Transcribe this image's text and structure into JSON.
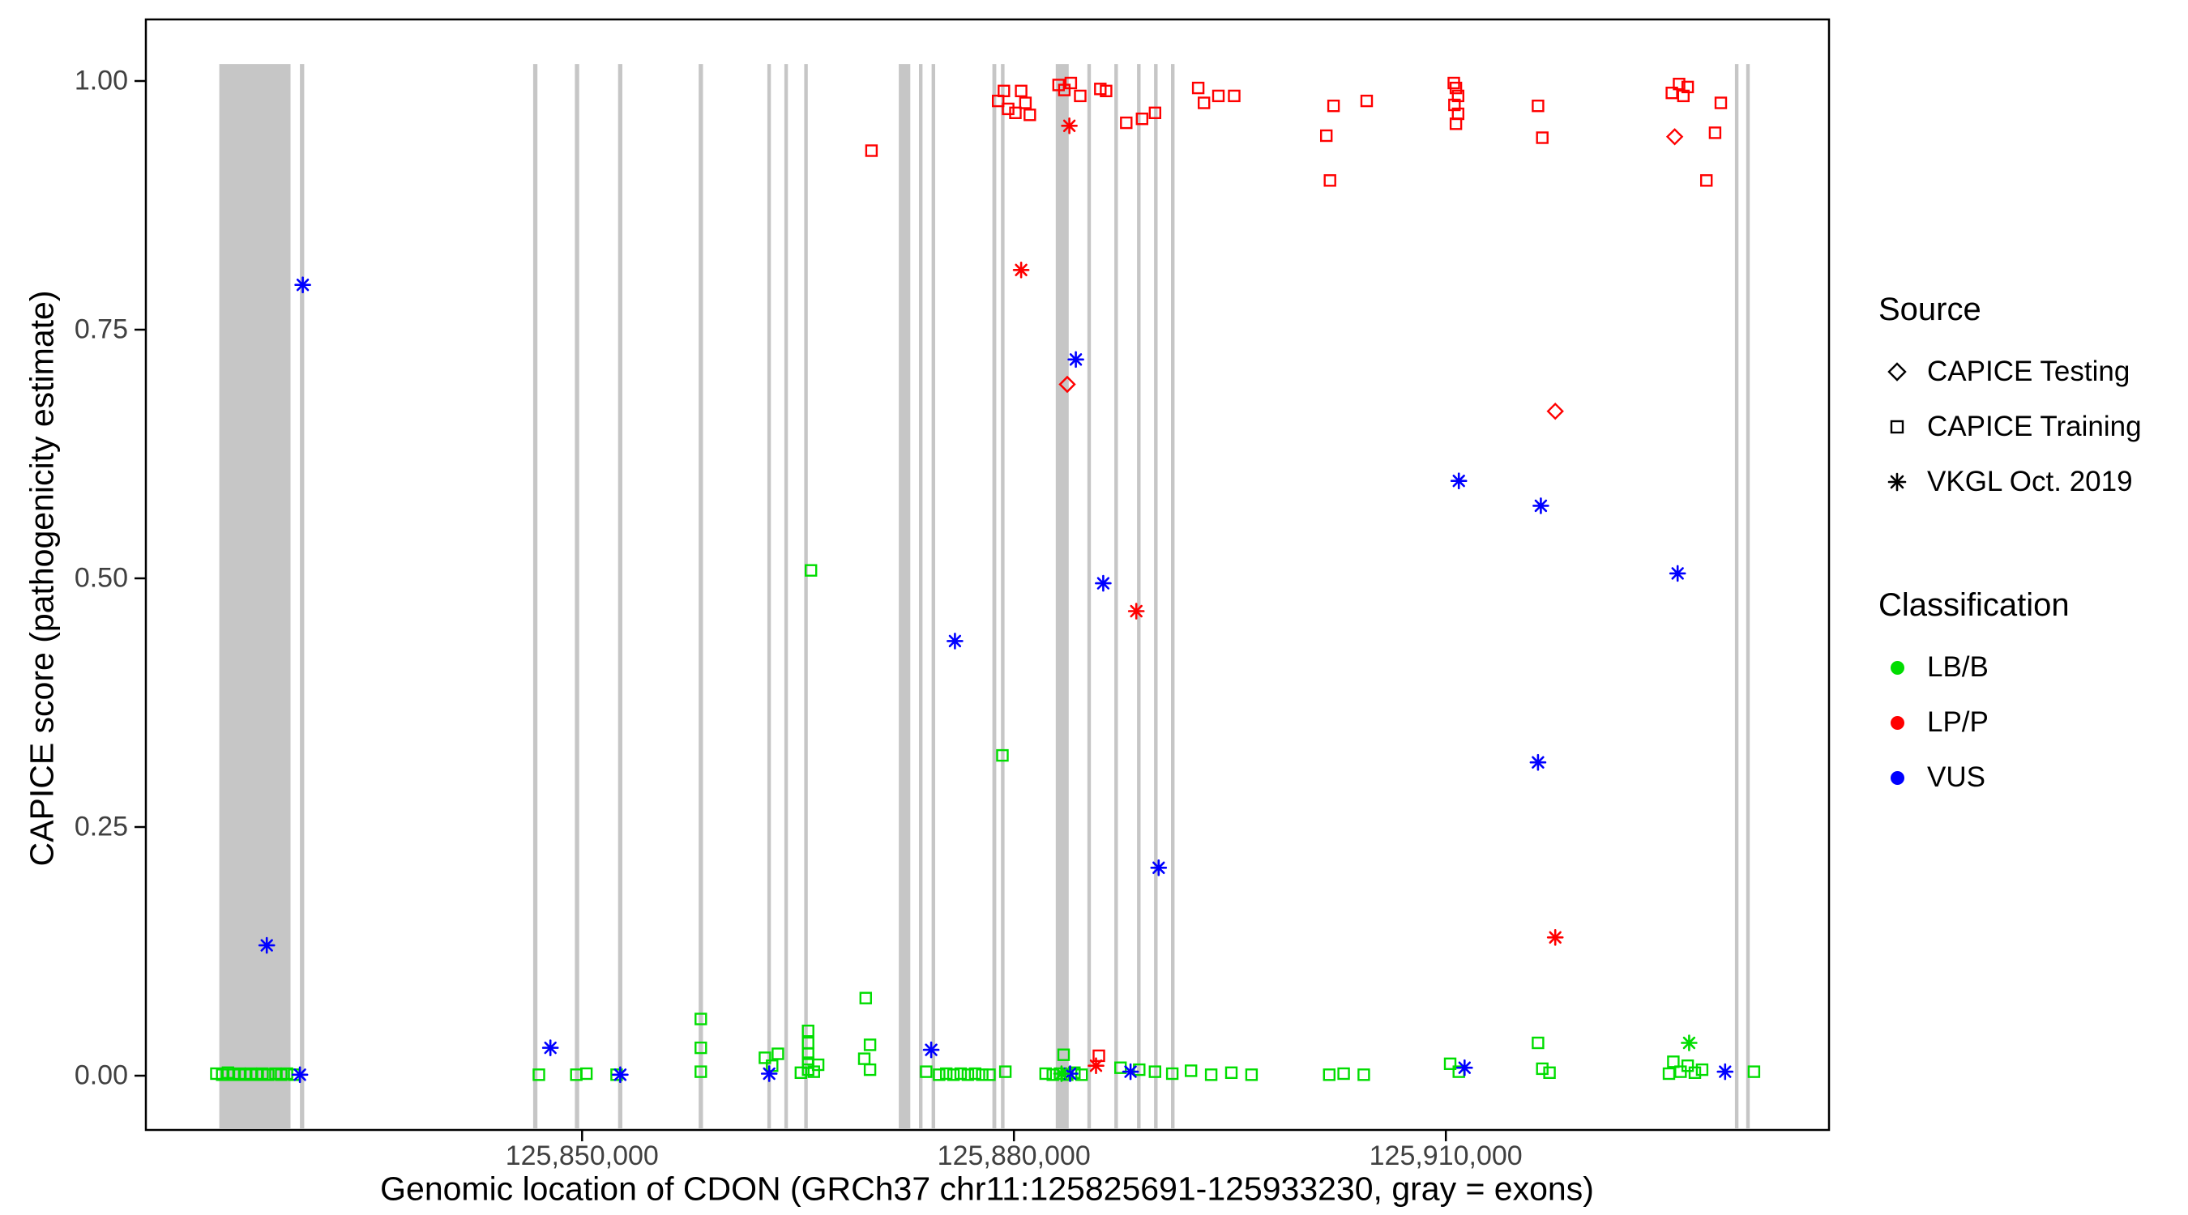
{
  "figure": {
    "background": "#FFFFFF",
    "panel_border": "#000000"
  },
  "chart_data": {
    "type": "scatter",
    "title": "",
    "xlabel": "Genomic location of CDON (GRCh37 chr11:125825691-125933230, gray = exons)",
    "ylabel": "CAPICE score (pathogenicity estimate)",
    "x_domain": [
      125819700,
      125936615
    ],
    "y_domain": [
      0,
      1
    ],
    "grid": false,
    "legend_position": "right",
    "x_ticks": [
      {
        "value": 125850000,
        "label": "125,850,000"
      },
      {
        "value": 125880000,
        "label": "125,880,000"
      },
      {
        "value": 125910000,
        "label": "125,910,000"
      }
    ],
    "y_ticks": [
      {
        "value": 0.0,
        "label": "0.00"
      },
      {
        "value": 0.25,
        "label": "0.25"
      },
      {
        "value": 0.5,
        "label": "0.50"
      },
      {
        "value": 0.75,
        "label": "0.75"
      },
      {
        "value": 1.0,
        "label": "1.00"
      }
    ],
    "colors": {
      "LB/B": "#00DD00",
      "LP/P": "#FF0000",
      "VUS": "#0000FF",
      "exon": "#C6C6C6"
    },
    "exons": [
      [
        125824800,
        125829750
      ],
      [
        125830400,
        125830700
      ],
      [
        125846600,
        125846900
      ],
      [
        125849500,
        125849800
      ],
      [
        125852500,
        125852800
      ],
      [
        125858100,
        125858400
      ],
      [
        125862870,
        125863120
      ],
      [
        125864050,
        125864300
      ],
      [
        125865430,
        125865680
      ],
      [
        125872000,
        125872800
      ],
      [
        125873400,
        125873650
      ],
      [
        125874280,
        125874530
      ],
      [
        125878500,
        125878770
      ],
      [
        125879100,
        125879350
      ],
      [
        125882900,
        125883800
      ],
      [
        125885100,
        125885350
      ],
      [
        125886970,
        125887220
      ],
      [
        125888550,
        125888800
      ],
      [
        125889730,
        125889980
      ],
      [
        125890910,
        125891160
      ],
      [
        125930080,
        125930330
      ],
      [
        125930860,
        125931110
      ]
    ],
    "series": [
      {
        "name": "CAPICE Training / LB/B",
        "source": "CAPICE Training",
        "classification": "LB/B",
        "marker": "square",
        "points": [
          [
            125824600,
            0.002
          ],
          [
            125825000,
            0.001
          ],
          [
            125825400,
            0.003
          ],
          [
            125825800,
            0.001
          ],
          [
            125826200,
            0.002
          ],
          [
            125826600,
            0.001
          ],
          [
            125827000,
            0.002
          ],
          [
            125827400,
            0.001
          ],
          [
            125827800,
            0.002
          ],
          [
            125828200,
            0.001
          ],
          [
            125828700,
            0.002
          ],
          [
            125829100,
            0.001
          ],
          [
            125829500,
            0.002
          ],
          [
            125830000,
            0.001
          ],
          [
            125847000,
            0.001
          ],
          [
            125849600,
            0.001
          ],
          [
            125850300,
            0.002
          ],
          [
            125852400,
            0.001
          ],
          [
            125858250,
            0.057
          ],
          [
            125858250,
            0.028
          ],
          [
            125858250,
            0.004
          ],
          [
            125862700,
            0.018
          ],
          [
            125863200,
            0.01
          ],
          [
            125863600,
            0.022
          ],
          [
            125865200,
            0.003
          ],
          [
            125865700,
            0.045
          ],
          [
            125865700,
            0.033
          ],
          [
            125865700,
            0.022
          ],
          [
            125865700,
            0.013
          ],
          [
            125865700,
            0.006
          ],
          [
            125866100,
            0.004
          ],
          [
            125866400,
            0.011
          ],
          [
            125865900,
            0.508
          ],
          [
            125869700,
            0.078
          ],
          [
            125870000,
            0.031
          ],
          [
            125869600,
            0.017
          ],
          [
            125870000,
            0.006
          ],
          [
            125873900,
            0.004
          ],
          [
            125874800,
            0.001
          ],
          [
            125875300,
            0.002
          ],
          [
            125875800,
            0.001
          ],
          [
            125876300,
            0.002
          ],
          [
            125876800,
            0.001
          ],
          [
            125877300,
            0.002
          ],
          [
            125877800,
            0.001
          ],
          [
            125878300,
            0.001
          ],
          [
            125879200,
            0.322
          ],
          [
            125879400,
            0.004
          ],
          [
            125882200,
            0.002
          ],
          [
            125882700,
            0.001
          ],
          [
            125883200,
            0.002
          ],
          [
            125883450,
            0.021
          ],
          [
            125883700,
            0.001
          ],
          [
            125884200,
            0.003
          ],
          [
            125884700,
            0.001
          ],
          [
            125887400,
            0.008
          ],
          [
            125888700,
            0.006
          ],
          [
            125889800,
            0.004
          ],
          [
            125891000,
            0.002
          ],
          [
            125892300,
            0.005
          ],
          [
            125893700,
            0.001
          ],
          [
            125895100,
            0.003
          ],
          [
            125896500,
            0.001
          ],
          [
            125901900,
            0.001
          ],
          [
            125902900,
            0.002
          ],
          [
            125904300,
            0.001
          ],
          [
            125910300,
            0.012
          ],
          [
            125910900,
            0.004
          ],
          [
            125916400,
            0.033
          ],
          [
            125916700,
            0.007
          ],
          [
            125917200,
            0.003
          ],
          [
            125925500,
            0.002
          ],
          [
            125925800,
            0.014
          ],
          [
            125926300,
            0.004
          ],
          [
            125926800,
            0.01
          ],
          [
            125927300,
            0.003
          ],
          [
            125927800,
            0.006
          ],
          [
            125931400,
            0.004
          ]
        ]
      },
      {
        "name": "CAPICE Training / LP/P",
        "source": "CAPICE Training",
        "classification": "LP/P",
        "marker": "square",
        "points": [
          [
            125870100,
            0.93
          ],
          [
            125878900,
            0.98
          ],
          [
            125879300,
            0.99
          ],
          [
            125879600,
            0.972
          ],
          [
            125880100,
            0.968
          ],
          [
            125880500,
            0.99
          ],
          [
            125880800,
            0.978
          ],
          [
            125881100,
            0.966
          ],
          [
            125883100,
            0.996
          ],
          [
            125883500,
            0.991
          ],
          [
            125883950,
            0.998
          ],
          [
            125884600,
            0.985
          ],
          [
            125886000,
            0.992
          ],
          [
            125886400,
            0.99
          ],
          [
            125885900,
            0.02
          ],
          [
            125887800,
            0.958
          ],
          [
            125888900,
            0.962
          ],
          [
            125889800,
            0.968
          ],
          [
            125892800,
            0.993
          ],
          [
            125893200,
            0.978
          ],
          [
            125894200,
            0.985
          ],
          [
            125895300,
            0.985
          ],
          [
            125901700,
            0.945
          ],
          [
            125901950,
            0.9
          ],
          [
            125902200,
            0.975
          ],
          [
            125904500,
            0.98
          ],
          [
            125910550,
            0.998
          ],
          [
            125910700,
            0.993
          ],
          [
            125910850,
            0.985
          ],
          [
            125910600,
            0.976
          ],
          [
            125910850,
            0.967
          ],
          [
            125910700,
            0.957
          ],
          [
            125916400,
            0.975
          ],
          [
            125916700,
            0.943
          ],
          [
            125925700,
            0.988
          ],
          [
            125926200,
            0.997
          ],
          [
            125926500,
            0.985
          ],
          [
            125926800,
            0.994
          ],
          [
            125928100,
            0.9
          ],
          [
            125928700,
            0.948
          ],
          [
            125929100,
            0.978
          ]
        ]
      },
      {
        "name": "CAPICE Testing / LP/P",
        "source": "CAPICE Testing",
        "classification": "LP/P",
        "marker": "diamond",
        "points": [
          [
            125883700,
            0.695
          ],
          [
            125917600,
            0.668
          ],
          [
            125925900,
            0.944
          ]
        ]
      },
      {
        "name": "VKGL Oct. 2019 / LP/P",
        "source": "VKGL Oct. 2019",
        "classification": "LP/P",
        "marker": "asterisk",
        "points": [
          [
            125880500,
            0.81
          ],
          [
            125883850,
            0.955
          ],
          [
            125885700,
            0.01
          ],
          [
            125888500,
            0.467
          ],
          [
            125917600,
            0.139
          ]
        ]
      },
      {
        "name": "VKGL Oct. 2019 / VUS",
        "source": "VKGL Oct. 2019",
        "classification": "VUS",
        "marker": "asterisk",
        "points": [
          [
            125828100,
            0.131
          ],
          [
            125830600,
            0.795
          ],
          [
            125830400,
            0.001
          ],
          [
            125847800,
            0.028
          ],
          [
            125852650,
            0.001
          ],
          [
            125863000,
            0.002
          ],
          [
            125874250,
            0.026
          ],
          [
            125875900,
            0.437
          ],
          [
            125883900,
            0.002
          ],
          [
            125884300,
            0.72
          ],
          [
            125886200,
            0.495
          ],
          [
            125888100,
            0.004
          ],
          [
            125890050,
            0.209
          ],
          [
            125910900,
            0.598
          ],
          [
            125911300,
            0.008
          ],
          [
            125916600,
            0.573
          ],
          [
            125916400,
            0.315
          ],
          [
            125926100,
            0.505
          ],
          [
            125929400,
            0.004
          ]
        ]
      },
      {
        "name": "VKGL Oct. 2019 / LB/B",
        "source": "VKGL Oct. 2019",
        "classification": "LB/B",
        "marker": "asterisk",
        "points": [
          [
            125926900,
            0.033
          ],
          [
            125883300,
            0.002
          ]
        ]
      }
    ]
  },
  "legend": {
    "source": {
      "title": "Source",
      "items": [
        {
          "label": "CAPICE Testing",
          "marker": "diamond"
        },
        {
          "label": "CAPICE Training",
          "marker": "square"
        },
        {
          "label": "VKGL Oct. 2019",
          "marker": "asterisk"
        }
      ]
    },
    "classification": {
      "title": "Classification",
      "items": [
        {
          "label": "LB/B",
          "color": "#00DD00"
        },
        {
          "label": "LP/P",
          "color": "#FF0000"
        },
        {
          "label": "VUS",
          "color": "#0000FF"
        }
      ]
    }
  }
}
